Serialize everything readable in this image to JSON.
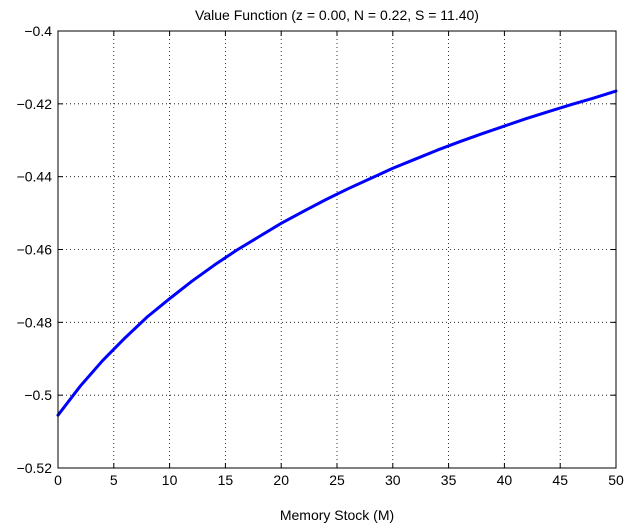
{
  "chart_data": {
    "type": "line",
    "title": "Value Function (z = 0.00, N = 0.22, S = 11.40)",
    "xlabel": "Memory Stock (M)",
    "ylabel": "",
    "xlim": [
      0,
      50
    ],
    "ylim": [
      -0.52,
      -0.4
    ],
    "xticks": [
      0,
      5,
      10,
      15,
      20,
      25,
      30,
      35,
      40,
      45,
      50
    ],
    "xtick_labels": [
      "0",
      "5",
      "10",
      "15",
      "20",
      "25",
      "30",
      "35",
      "40",
      "45",
      "50"
    ],
    "yticks": [
      -0.52,
      -0.5,
      -0.48,
      -0.46,
      -0.44,
      -0.42,
      -0.4
    ],
    "ytick_labels": [
      "−0.52",
      "−0.5",
      "−0.48",
      "−0.46",
      "−0.44",
      "−0.42",
      "−0.4"
    ],
    "grid": true,
    "series": [
      {
        "color": "#0000ff",
        "x": [
          0,
          2,
          4,
          6,
          8,
          10,
          12,
          14,
          16,
          18,
          20,
          22,
          24,
          26,
          28,
          30,
          32,
          34,
          36,
          38,
          40,
          42,
          44,
          46,
          48,
          50
        ],
        "y": [
          -0.5055,
          -0.4975,
          -0.4905,
          -0.4843,
          -0.4785,
          -0.4735,
          -0.4687,
          -0.4643,
          -0.4602,
          -0.4565,
          -0.4528,
          -0.4495,
          -0.4463,
          -0.4433,
          -0.4405,
          -0.4377,
          -0.4352,
          -0.4327,
          -0.4304,
          -0.4282,
          -0.4261,
          -0.424,
          -0.4221,
          -0.4202,
          -0.4184,
          -0.4165
        ]
      }
    ]
  }
}
